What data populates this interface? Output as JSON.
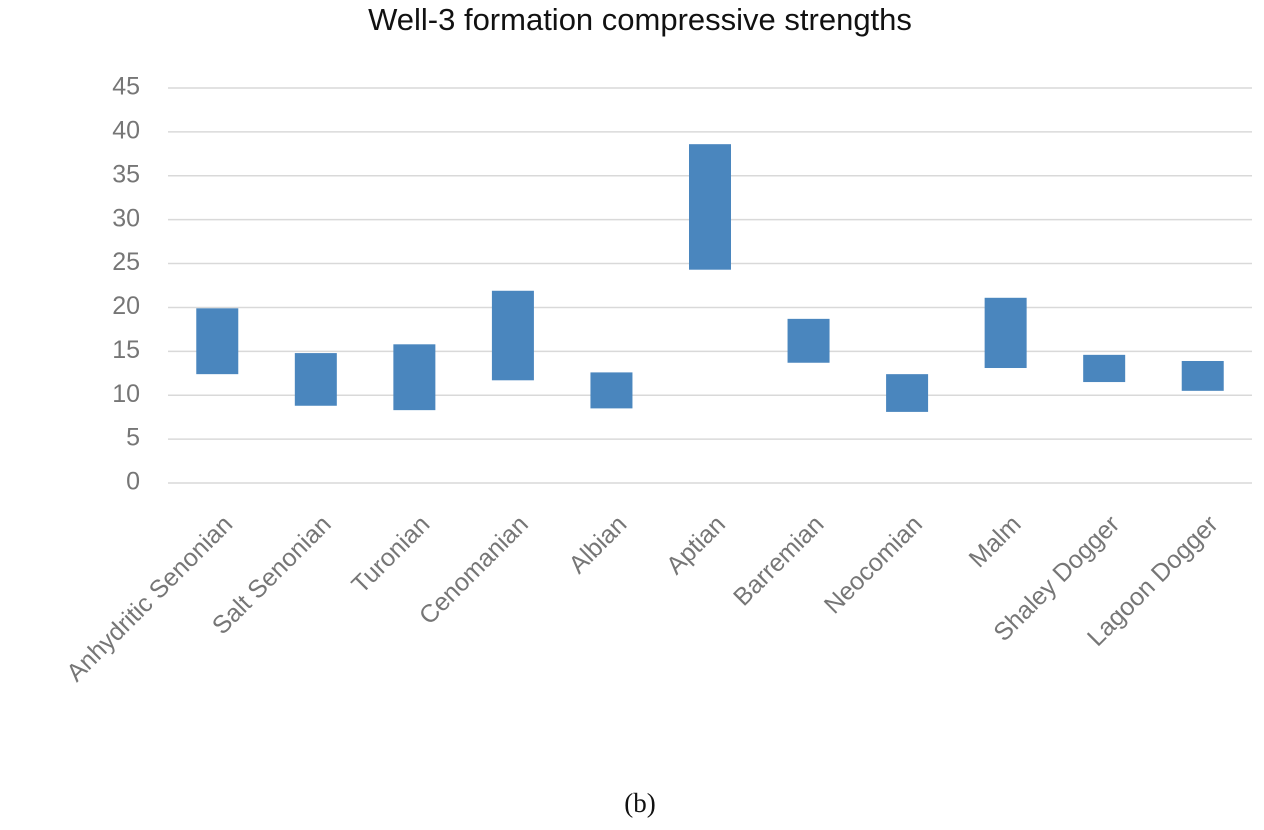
{
  "chart_data": {
    "type": "bar",
    "title": "Well-3 formation compressive strengths",
    "categories": [
      "Anhydritic Senonian",
      "Salt Senonian",
      "Turonian",
      "Cenomanian",
      "Albian",
      "Aptian",
      "Barremian",
      "Neocomian",
      "Malm",
      "Shaley Dogger",
      "Lagoon Dogger"
    ],
    "low": [
      12.4,
      8.8,
      8.3,
      11.7,
      8.5,
      24.3,
      13.7,
      8.1,
      13.1,
      11.5,
      10.5
    ],
    "high": [
      19.9,
      14.8,
      15.8,
      21.9,
      12.6,
      38.6,
      18.7,
      12.4,
      21.1,
      14.6,
      13.9
    ],
    "color": "#4a86be",
    "ylim": [
      0,
      45
    ],
    "yticks": [
      0,
      5,
      10,
      15,
      20,
      25,
      30,
      35,
      40,
      45
    ],
    "grid": true,
    "caption": "(b)"
  }
}
